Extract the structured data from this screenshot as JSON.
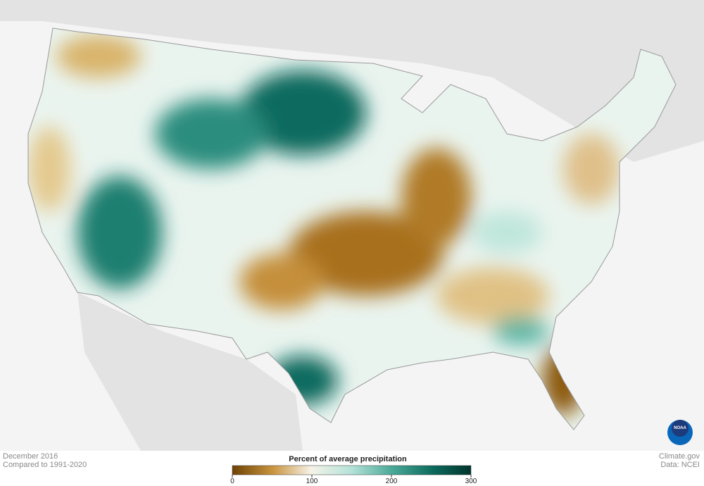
{
  "caption": {
    "date": "December 2016",
    "baseline": "Compared to 1991-2020"
  },
  "legend": {
    "title": "Percent of average precipitation",
    "range": [
      0,
      300
    ],
    "ticks": [
      0,
      100,
      200,
      300
    ]
  },
  "credits": {
    "site": "Climate.gov",
    "data": "Data: NCEI",
    "logo": "NOAA"
  }
}
